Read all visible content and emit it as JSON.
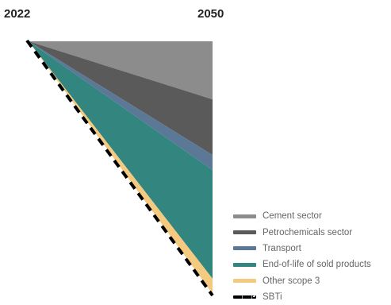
{
  "chart_data": {
    "type": "area",
    "x_labels": {
      "start": "2022",
      "end": "2050"
    },
    "series": [
      {
        "name": "Cement sector",
        "color": "#8c8c8c",
        "share": 0.23
      },
      {
        "name": "Petrochemicals sector",
        "color": "#5a5a5a",
        "share": 0.22
      },
      {
        "name": "Transport",
        "color": "#5b7896",
        "share": 0.06
      },
      {
        "name": "End-of-life of sold products",
        "color": "#33867f",
        "share": 0.43
      },
      {
        "name": "Other scope 3",
        "color": "#f4ca80",
        "share": 0.06
      }
    ],
    "target": {
      "name": "SBTi",
      "style": "dashed",
      "color": "#000000"
    }
  }
}
